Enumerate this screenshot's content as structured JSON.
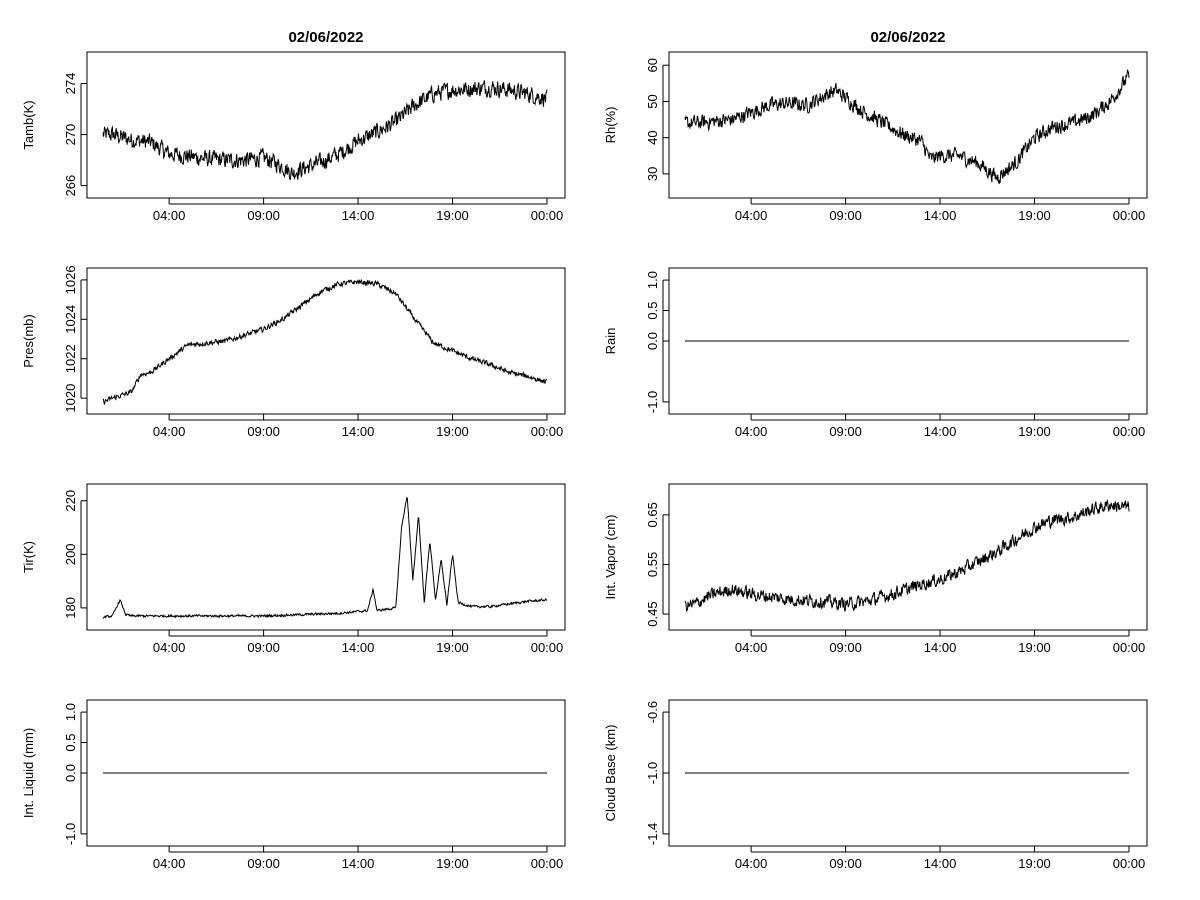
{
  "chart_data": [
    {
      "type": "line",
      "title": "02/06/2022",
      "ylabel": "Tamb(K)",
      "xlabel": "",
      "x_tick_labels": [
        "04:00",
        "09:00",
        "14:00",
        "19:00",
        "00:00"
      ],
      "x_tick_hours": [
        4,
        9,
        14,
        19,
        24
      ],
      "xlim_hours": [
        0,
        24
      ],
      "ylim": [
        265.5,
        276
      ],
      "y_ticks": [
        266,
        270,
        274
      ],
      "y_tick_labels": [
        "266",
        "270",
        "274"
      ],
      "series": [
        {
          "name": "Tamb(K)",
          "x": [
            0.5,
            1,
            2,
            3,
            4,
            5,
            6,
            7,
            8,
            9,
            10,
            10.5,
            11,
            12,
            13,
            14,
            15,
            16,
            17,
            18,
            19,
            20,
            21,
            22,
            23,
            24
          ],
          "y": [
            270,
            270,
            269.6,
            269.4,
            268.5,
            268.3,
            268.1,
            268,
            268,
            268.2,
            267.5,
            267,
            267.3,
            267.8,
            268.5,
            269.5,
            270.2,
            271,
            272.3,
            273.2,
            273.5,
            273.6,
            273.7,
            273.5,
            273.2,
            272.8
          ],
          "noise": 0.9
        }
      ]
    },
    {
      "type": "line",
      "title": "02/06/2022",
      "ylabel": "Rh(%)",
      "xlabel": "",
      "x_tick_labels": [
        "04:00",
        "09:00",
        "14:00",
        "19:00",
        "00:00"
      ],
      "x_tick_hours": [
        4,
        9,
        14,
        19,
        24
      ],
      "xlim_hours": [
        0,
        24
      ],
      "ylim": [
        25,
        62
      ],
      "y_ticks": [
        30,
        40,
        50,
        60
      ],
      "y_tick_labels": [
        "30",
        "40",
        "50",
        "60"
      ],
      "series": [
        {
          "name": "Rh(%)",
          "x": [
            0.5,
            1,
            2,
            3,
            4,
            5,
            6,
            7,
            8,
            8.5,
            9,
            10,
            11,
            12,
            13,
            13.5,
            14,
            15,
            16,
            17,
            18,
            19,
            20,
            21,
            22,
            23,
            24
          ],
          "y": [
            44,
            44,
            44.5,
            45,
            47,
            49,
            49.5,
            49,
            52,
            53,
            51,
            47,
            44,
            41,
            39,
            34,
            35,
            35,
            33,
            29,
            33,
            40,
            43,
            44,
            46,
            50,
            57
          ],
          "noise": 2.8
        }
      ]
    },
    {
      "type": "line",
      "title": "",
      "ylabel": "Pres(mb)",
      "xlabel": "",
      "x_tick_labels": [
        "04:00",
        "09:00",
        "14:00",
        "19:00",
        "00:00"
      ],
      "x_tick_hours": [
        4,
        9,
        14,
        19,
        24
      ],
      "xlim_hours": [
        0,
        24
      ],
      "ylim": [
        1019.5,
        1026.3
      ],
      "y_ticks": [
        1020,
        1022,
        1024,
        1026
      ],
      "y_tick_labels": [
        "1020",
        "1022",
        "1024",
        "1026"
      ],
      "series": [
        {
          "name": "Pres(mb)",
          "x": [
            0.5,
            1,
            2,
            2.5,
            3,
            4,
            5,
            6,
            7,
            8,
            9,
            10,
            11,
            12,
            13,
            14,
            15,
            16,
            17,
            18,
            19,
            20,
            21,
            22,
            23,
            24
          ],
          "y": [
            1019.8,
            1020,
            1020.3,
            1021.2,
            1021.3,
            1022,
            1022.7,
            1022.8,
            1022.9,
            1023.2,
            1023.5,
            1024,
            1024.7,
            1025.4,
            1025.8,
            1025.9,
            1025.8,
            1025.3,
            1024,
            1022.8,
            1022.4,
            1022,
            1021.7,
            1021.3,
            1021.1,
            1020.8
          ],
          "noise": 0.18
        }
      ]
    },
    {
      "type": "line",
      "title": "",
      "ylabel": "Rain",
      "xlabel": "",
      "x_tick_labels": [
        "04:00",
        "09:00",
        "14:00",
        "19:00",
        "00:00"
      ],
      "x_tick_hours": [
        4,
        9,
        14,
        19,
        24
      ],
      "xlim_hours": [
        0,
        24
      ],
      "ylim": [
        -1.1,
        1.1
      ],
      "y_ticks": [
        -1.0,
        0.0,
        0.5,
        1.0
      ],
      "y_tick_labels": [
        "-1.0",
        "0.0",
        "0.5",
        "1.0"
      ],
      "series": [
        {
          "name": "Rain",
          "x": [
            0.5,
            24
          ],
          "y": [
            0,
            0
          ],
          "noise": 0
        }
      ]
    },
    {
      "type": "line",
      "title": "",
      "ylabel": "Tir(K)",
      "xlabel": "",
      "x_tick_labels": [
        "04:00",
        "09:00",
        "14:00",
        "19:00",
        "00:00"
      ],
      "x_tick_hours": [
        4,
        9,
        14,
        19,
        24
      ],
      "xlim_hours": [
        0,
        24
      ],
      "ylim": [
        174,
        224
      ],
      "y_ticks": [
        180,
        200,
        220
      ],
      "y_tick_labels": [
        "180",
        "200",
        "220"
      ],
      "series": [
        {
          "name": "Tir(K)",
          "x": [
            0.5,
            1,
            1.4,
            1.7,
            2,
            4,
            9,
            13,
            14.5,
            14.8,
            15,
            15.5,
            16,
            16.3,
            16.6,
            16.9,
            17.2,
            17.5,
            17.8,
            18.1,
            18.4,
            18.7,
            19,
            19.3,
            20,
            21,
            22,
            23,
            24
          ],
          "y": [
            176.5,
            177,
            183,
            177.5,
            177,
            177,
            177,
            178,
            179,
            187,
            179,
            179.5,
            180,
            210,
            222,
            190,
            215,
            182,
            205,
            183,
            198,
            181,
            200,
            182,
            180.5,
            180.5,
            181.5,
            182.5,
            183
          ],
          "noise": 0.6
        }
      ]
    },
    {
      "type": "line",
      "title": "",
      "ylabel": "Int. Vapor (cm)",
      "xlabel": "",
      "x_tick_labels": [
        "04:00",
        "09:00",
        "14:00",
        "19:00",
        "00:00"
      ],
      "x_tick_hours": [
        4,
        9,
        14,
        19,
        24
      ],
      "xlim_hours": [
        0,
        24
      ],
      "ylim": [
        0.43,
        0.7
      ],
      "y_ticks": [
        0.45,
        0.55,
        0.65
      ],
      "y_tick_labels": [
        "0.45",
        "0.55",
        "0.65"
      ],
      "series": [
        {
          "name": "Int. Vapor (cm)",
          "x": [
            0.5,
            1,
            2,
            3,
            4,
            5,
            6,
            7,
            8,
            9,
            10,
            11,
            12,
            13,
            14,
            15,
            16,
            17,
            18,
            19,
            20,
            21,
            22,
            23,
            24
          ],
          "y": [
            0.465,
            0.47,
            0.49,
            0.5,
            0.49,
            0.485,
            0.48,
            0.477,
            0.475,
            0.47,
            0.475,
            0.485,
            0.497,
            0.51,
            0.52,
            0.535,
            0.555,
            0.575,
            0.6,
            0.625,
            0.64,
            0.645,
            0.66,
            0.67,
            0.665
          ],
          "noise": 0.018
        }
      ]
    },
    {
      "type": "line",
      "title": "",
      "ylabel": "Int. Liquid (mm)",
      "xlabel": "",
      "x_tick_labels": [
        "04:00",
        "09:00",
        "14:00",
        "19:00",
        "00:00"
      ],
      "x_tick_hours": [
        4,
        9,
        14,
        19,
        24
      ],
      "xlim_hours": [
        0,
        24
      ],
      "ylim": [
        -1.1,
        1.1
      ],
      "y_ticks": [
        -1.0,
        0.0,
        0.5,
        1.0
      ],
      "y_tick_labels": [
        "-1.0",
        "0.0",
        "0.5",
        "1.0"
      ],
      "series": [
        {
          "name": "Int. Liquid (mm)",
          "x": [
            0.5,
            24
          ],
          "y": [
            0,
            0
          ],
          "noise": 0
        }
      ]
    },
    {
      "type": "line",
      "title": "",
      "ylabel": "Cloud Base (km)",
      "xlabel": "",
      "x_tick_labels": [
        "04:00",
        "09:00",
        "14:00",
        "19:00",
        "00:00"
      ],
      "x_tick_hours": [
        4,
        9,
        14,
        19,
        24
      ],
      "xlim_hours": [
        0,
        24
      ],
      "ylim": [
        -1.44,
        -0.56
      ],
      "y_ticks": [
        -1.4,
        -1.0,
        -0.6
      ],
      "y_tick_labels": [
        "-1.4",
        "-1.0",
        "-0.6"
      ],
      "series": [
        {
          "name": "Cloud Base (km)",
          "x": [
            0.5,
            24
          ],
          "y": [
            -1.0,
            -1.0
          ],
          "noise": 0
        }
      ]
    }
  ]
}
